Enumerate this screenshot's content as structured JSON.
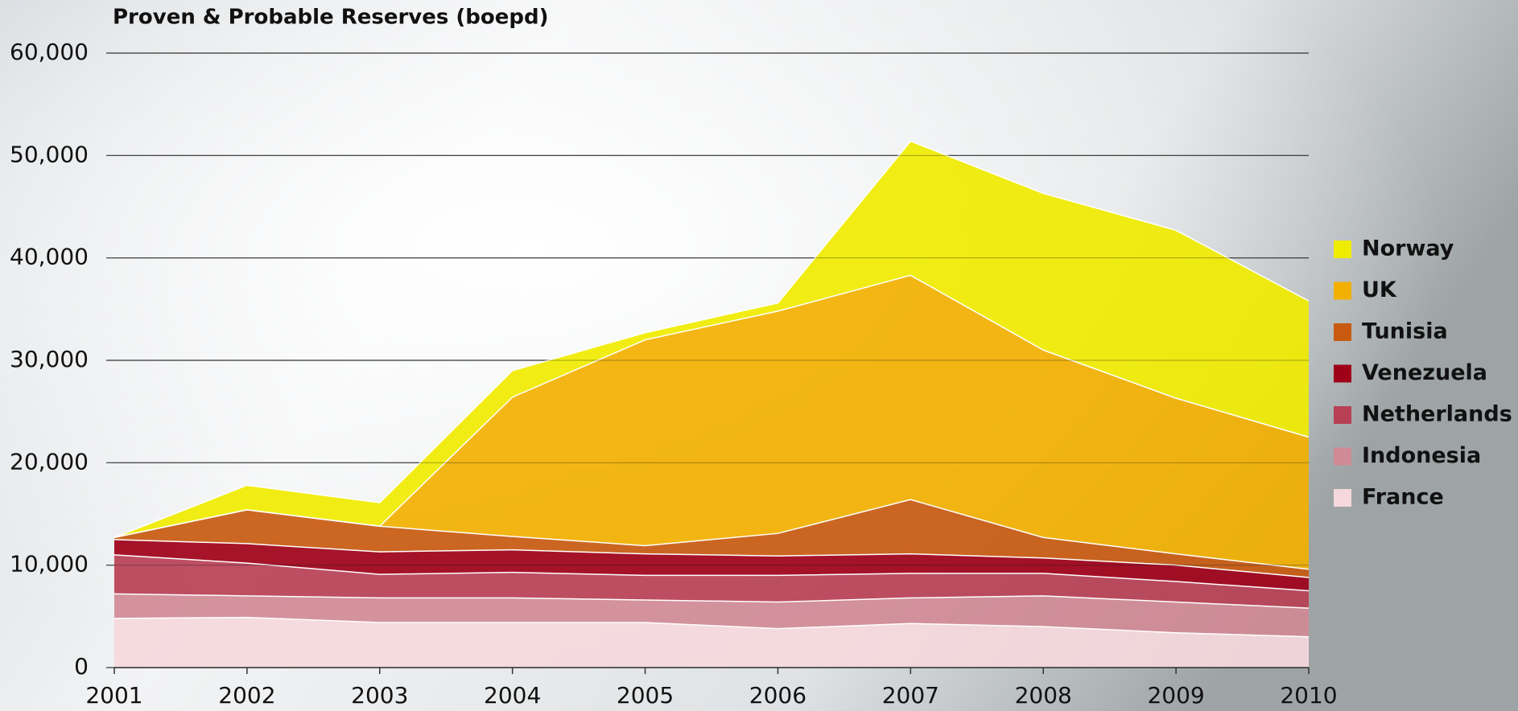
{
  "chart_data": {
    "type": "stacked-area",
    "title": "Proven & Probable Reserves (boepd)",
    "categories": [
      "2001",
      "2002",
      "2003",
      "2004",
      "2005",
      "2006",
      "2007",
      "2008",
      "2009",
      "2010"
    ],
    "series": [
      {
        "name": "Norway",
        "color": "#f0ec00",
        "values": [
          0,
          2400,
          2300,
          2600,
          700,
          800,
          13100,
          15300,
          16400,
          13300
        ]
      },
      {
        "name": "UK",
        "color": "#f2b000",
        "values": [
          0,
          0,
          0,
          13600,
          20100,
          21700,
          21900,
          18300,
          15200,
          12900
        ]
      },
      {
        "name": "Tunisia",
        "color": "#c85a10",
        "values": [
          200,
          3300,
          2500,
          1300,
          800,
          2200,
          5300,
          2000,
          1100,
          800
        ]
      },
      {
        "name": "Venezuela",
        "color": "#9e0018",
        "values": [
          1500,
          1900,
          2200,
          2200,
          2100,
          1900,
          1900,
          1500,
          1600,
          1300
        ]
      },
      {
        "name": "Netherlands",
        "color": "#b84055",
        "values": [
          3800,
          3200,
          2300,
          2500,
          2400,
          2600,
          2400,
          2200,
          2000,
          1700
        ]
      },
      {
        "name": "Indonesia",
        "color": "#d08a95",
        "values": [
          2400,
          2100,
          2400,
          2400,
          2200,
          2600,
          2500,
          3000,
          3000,
          2800
        ]
      },
      {
        "name": "France",
        "color": "#f5d8dc",
        "values": [
          4800,
          4900,
          4400,
          4400,
          4400,
          3800,
          4300,
          4000,
          3400,
          3000
        ]
      }
    ],
    "ylim": [
      0,
      60000
    ],
    "yticks": [
      0,
      {
        "value": 10000,
        "label": "10,000"
      },
      {
        "value": 20000,
        "label": "20,000"
      },
      {
        "value": 30000,
        "label": "30,000"
      },
      {
        "value": 40000,
        "label": "40,000"
      },
      {
        "value": 50000,
        "label": "50,000"
      },
      {
        "value": 60000,
        "label": "60,000"
      }
    ],
    "grid": true,
    "legend": "right"
  }
}
